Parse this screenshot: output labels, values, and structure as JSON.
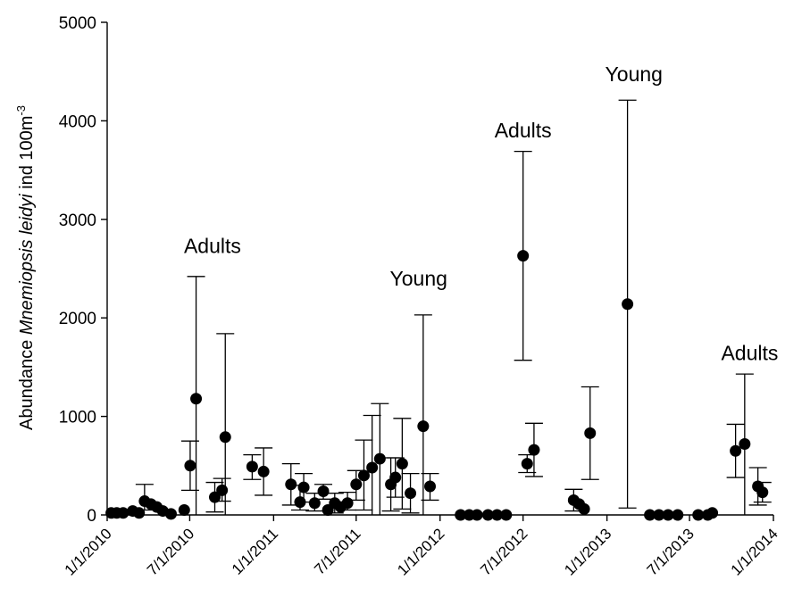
{
  "chart_data": {
    "type": "scatter",
    "title": "",
    "ylabel": {
      "prefix": "Abundance ",
      "species": "Mnemiopsis leidyi",
      "unit": " ind 100m",
      "superscript": "-3"
    },
    "xlabel": "",
    "ylim": [
      0,
      5000
    ],
    "yticks": [
      0,
      1000,
      2000,
      3000,
      4000,
      5000
    ],
    "xlim": [
      "2010-01-01",
      "2014-01-01"
    ],
    "xticks": [
      {
        "date": "2010-01-01",
        "label": "1/1/2010"
      },
      {
        "date": "2010-07-01",
        "label": "7/1/2010"
      },
      {
        "date": "2011-01-01",
        "label": "1/1/2011"
      },
      {
        "date": "2011-07-01",
        "label": "7/1/2011"
      },
      {
        "date": "2012-01-01",
        "label": "1/1/2012"
      },
      {
        "date": "2012-07-01",
        "label": "7/1/2012"
      },
      {
        "date": "2013-01-01",
        "label": "1/1/2013"
      },
      {
        "date": "2013-07-01",
        "label": "7/1/2013"
      },
      {
        "date": "2014-01-01",
        "label": "1/1/2014"
      }
    ],
    "grid": false,
    "marker_color": "#000000",
    "points": [
      {
        "date": "2010-01-10",
        "y": 20
      },
      {
        "date": "2010-01-22",
        "y": 20
      },
      {
        "date": "2010-02-05",
        "y": 20
      },
      {
        "date": "2010-02-26",
        "y": 40
      },
      {
        "date": "2010-03-12",
        "y": 20
      },
      {
        "date": "2010-03-24",
        "y": 140,
        "lo": 50,
        "hi": 310
      },
      {
        "date": "2010-04-07",
        "y": 110
      },
      {
        "date": "2010-04-20",
        "y": 80
      },
      {
        "date": "2010-05-03",
        "y": 40
      },
      {
        "date": "2010-05-21",
        "y": 10
      },
      {
        "date": "2010-06-19",
        "y": 50
      },
      {
        "date": "2010-07-02",
        "y": 500,
        "lo": 250,
        "hi": 750
      },
      {
        "date": "2010-07-15",
        "y": 1180,
        "lo": 0,
        "hi": 2420
      },
      {
        "date": "2010-08-25",
        "y": 180,
        "lo": 30,
        "hi": 330
      },
      {
        "date": "2010-09-10",
        "y": 250,
        "lo": 140,
        "hi": 370
      },
      {
        "date": "2010-09-17",
        "y": 790,
        "lo": 0,
        "hi": 1840
      },
      {
        "date": "2010-11-15",
        "y": 490,
        "lo": 360,
        "hi": 610
      },
      {
        "date": "2010-12-10",
        "y": 440,
        "lo": 200,
        "hi": 680
      },
      {
        "date": "2011-02-08",
        "y": 310,
        "lo": 100,
        "hi": 520
      },
      {
        "date": "2011-02-28",
        "y": 130,
        "lo": 50,
        "hi": 300
      },
      {
        "date": "2011-03-08",
        "y": 280,
        "lo": 130,
        "hi": 420
      },
      {
        "date": "2011-04-01",
        "y": 120,
        "lo": 40,
        "hi": 220
      },
      {
        "date": "2011-04-20",
        "y": 240,
        "lo": 160,
        "hi": 310
      },
      {
        "date": "2011-04-30",
        "y": 50
      },
      {
        "date": "2011-05-15",
        "y": 120,
        "lo": 20,
        "hi": 220
      },
      {
        "date": "2011-05-28",
        "y": 80
      },
      {
        "date": "2011-06-12",
        "y": 120,
        "lo": 50,
        "hi": 230
      },
      {
        "date": "2011-07-01",
        "y": 310,
        "lo": 150,
        "hi": 450
      },
      {
        "date": "2011-07-18",
        "y": 400,
        "lo": 50,
        "hi": 760
      },
      {
        "date": "2011-08-05",
        "y": 480,
        "lo": 0,
        "hi": 1010
      },
      {
        "date": "2011-08-22",
        "y": 570,
        "lo": 0,
        "hi": 1130
      },
      {
        "date": "2011-09-15",
        "y": 310,
        "lo": 40,
        "hi": 580
      },
      {
        "date": "2011-09-25",
        "y": 380,
        "lo": 180,
        "hi": 580
      },
      {
        "date": "2011-10-10",
        "y": 520,
        "lo": 60,
        "hi": 980
      },
      {
        "date": "2011-10-28",
        "y": 220,
        "lo": 20,
        "hi": 420
      },
      {
        "date": "2011-11-25",
        "y": 900,
        "lo": 0,
        "hi": 2030
      },
      {
        "date": "2011-12-10",
        "y": 290,
        "lo": 150,
        "hi": 420
      },
      {
        "date": "2012-02-15",
        "y": 0
      },
      {
        "date": "2012-03-05",
        "y": 0
      },
      {
        "date": "2012-03-22",
        "y": 0
      },
      {
        "date": "2012-04-15",
        "y": 0
      },
      {
        "date": "2012-05-05",
        "y": 0
      },
      {
        "date": "2012-05-25",
        "y": 0
      },
      {
        "date": "2012-07-01",
        "y": 2630,
        "lo": 1570,
        "hi": 3690
      },
      {
        "date": "2012-07-10",
        "y": 520,
        "lo": 430,
        "hi": 610
      },
      {
        "date": "2012-07-25",
        "y": 660,
        "lo": 390,
        "hi": 930
      },
      {
        "date": "2012-10-20",
        "y": 150,
        "lo": 40,
        "hi": 260
      },
      {
        "date": "2012-11-01",
        "y": 110
      },
      {
        "date": "2012-11-12",
        "y": 60
      },
      {
        "date": "2012-11-25",
        "y": 830,
        "lo": 360,
        "hi": 1300
      },
      {
        "date": "2013-02-15",
        "y": 2140,
        "lo": 70,
        "hi": 4210
      },
      {
        "date": "2013-04-05",
        "y": 0
      },
      {
        "date": "2013-04-25",
        "y": 0
      },
      {
        "date": "2013-05-15",
        "y": 0
      },
      {
        "date": "2013-06-05",
        "y": 0
      },
      {
        "date": "2013-07-20",
        "y": 0
      },
      {
        "date": "2013-08-10",
        "y": 0
      },
      {
        "date": "2013-08-20",
        "y": 20
      },
      {
        "date": "2013-10-10",
        "y": 650,
        "lo": 380,
        "hi": 920
      },
      {
        "date": "2013-10-30",
        "y": 720,
        "lo": 0,
        "hi": 1430
      },
      {
        "date": "2013-11-28",
        "y": 290,
        "lo": 100,
        "hi": 480
      },
      {
        "date": "2013-12-08",
        "y": 230,
        "lo": 130,
        "hi": 330
      }
    ],
    "annotations": [
      {
        "text": "Adults",
        "date": "2010-08-20",
        "y": 2660
      },
      {
        "text": "Young",
        "date": "2011-11-15",
        "y": 2330
      },
      {
        "text": "Adults",
        "date": "2012-07-01",
        "y": 3830
      },
      {
        "text": "Young",
        "date": "2013-03-01",
        "y": 4400
      },
      {
        "text": "Adults",
        "date": "2013-11-10",
        "y": 1570
      }
    ]
  }
}
